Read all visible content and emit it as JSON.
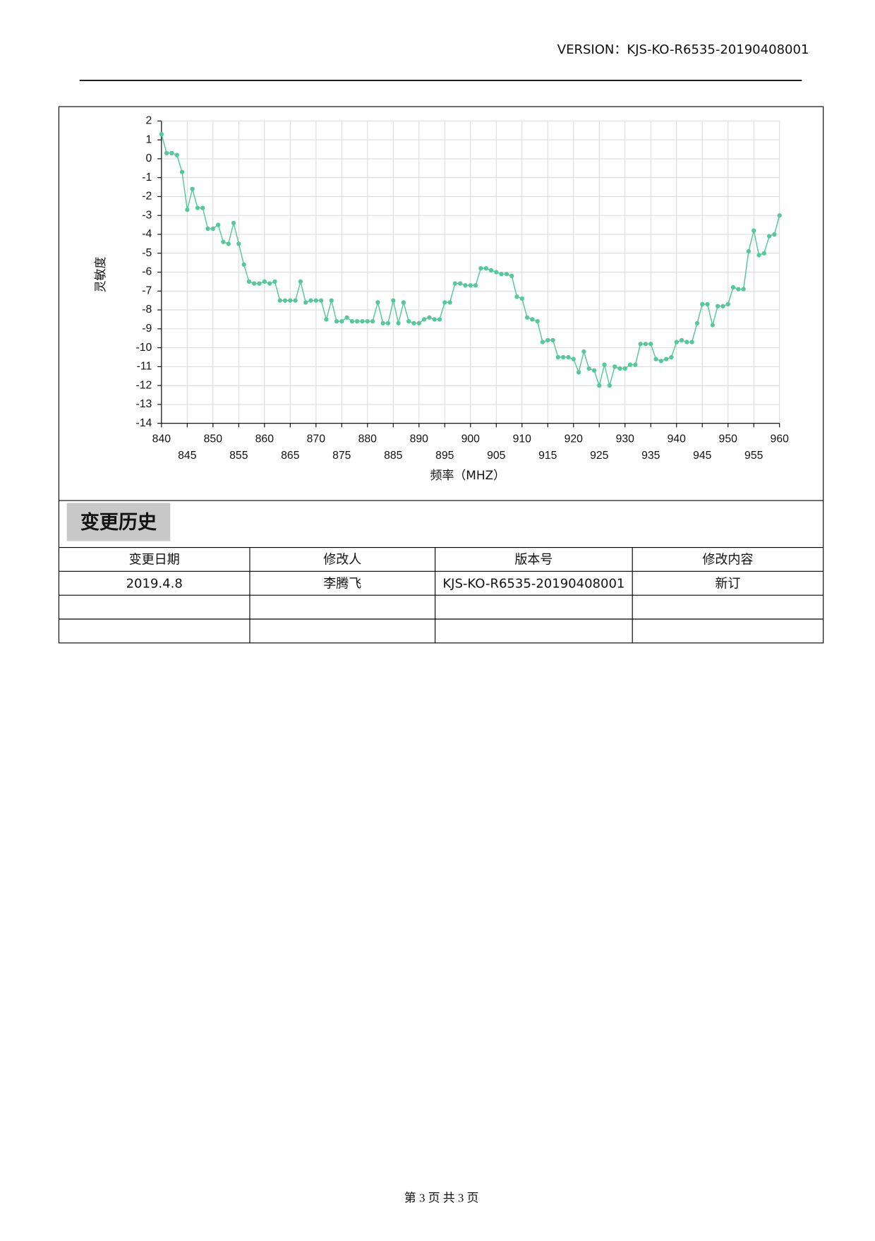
{
  "header": {
    "version": "VERSION：KJS-KO-R6535-20190408001"
  },
  "chart_data": {
    "type": "line",
    "x_label": "频率（MHZ）",
    "y_label": "灵敏度",
    "x": [
      840,
      841,
      842,
      843,
      844,
      845,
      846,
      847,
      848,
      849,
      850,
      851,
      852,
      853,
      854,
      855,
      856,
      857,
      858,
      859,
      860,
      861,
      862,
      863,
      864,
      865,
      866,
      867,
      868,
      869,
      870,
      871,
      872,
      873,
      874,
      875,
      876,
      877,
      878,
      879,
      880,
      881,
      882,
      883,
      884,
      885,
      886,
      887,
      888,
      889,
      890,
      891,
      892,
      893,
      894,
      895,
      896,
      897,
      898,
      899,
      900,
      901,
      902,
      903,
      904,
      905,
      906,
      907,
      908,
      909,
      910,
      911,
      912,
      913,
      914,
      915,
      916,
      917,
      918,
      919,
      920,
      921,
      922,
      923,
      924,
      925,
      926,
      927,
      928,
      929,
      930,
      931,
      932,
      933,
      934,
      935,
      936,
      937,
      938,
      939,
      940,
      941,
      942,
      943,
      944,
      945,
      946,
      947,
      948,
      949,
      950,
      951,
      952,
      953,
      954,
      955,
      956,
      957,
      958,
      959,
      960
    ],
    "values": [
      1.3,
      0.3,
      0.3,
      0.2,
      -0.7,
      -2.7,
      -1.6,
      -2.6,
      -2.6,
      -3.7,
      -3.7,
      -3.5,
      -4.4,
      -4.5,
      -3.4,
      -4.5,
      -5.6,
      -6.5,
      -6.6,
      -6.6,
      -6.5,
      -6.6,
      -6.5,
      -7.5,
      -7.5,
      -7.5,
      -7.5,
      -6.5,
      -7.6,
      -7.5,
      -7.5,
      -7.5,
      -8.5,
      -7.5,
      -8.6,
      -8.6,
      -8.4,
      -8.6,
      -8.6,
      -8.6,
      -8.6,
      -8.6,
      -7.6,
      -8.7,
      -8.7,
      -7.5,
      -8.7,
      -7.6,
      -8.6,
      -8.7,
      -8.7,
      -8.5,
      -8.4,
      -8.5,
      -8.5,
      -7.6,
      -7.6,
      -6.6,
      -6.6,
      -6.7,
      -6.7,
      -6.7,
      -5.8,
      -5.8,
      -5.9,
      -6.0,
      -6.1,
      -6.1,
      -6.2,
      -7.3,
      -7.4,
      -8.4,
      -8.5,
      -8.6,
      -9.7,
      -9.6,
      -9.6,
      -10.5,
      -10.5,
      -10.5,
      -10.6,
      -11.3,
      -10.2,
      -11.1,
      -11.2,
      -12.0,
      -10.9,
      -12.0,
      -11.0,
      -11.1,
      -11.1,
      -10.9,
      -10.9,
      -9.8,
      -9.8,
      -9.8,
      -10.6,
      -10.7,
      -10.6,
      -10.5,
      -9.7,
      -9.6,
      -9.7,
      -9.7,
      -8.7,
      -7.7,
      -7.7,
      -8.8,
      -7.8,
      -7.8,
      -7.7,
      -6.8,
      -6.9,
      -6.9,
      -4.9,
      -3.8,
      -5.1,
      -5.0,
      -4.1,
      -4.0,
      -3.0
    ],
    "color": "#55c999",
    "xlim": [
      840,
      960
    ],
    "ylim": [
      -14,
      2
    ],
    "xticks": [
      840,
      845,
      850,
      855,
      860,
      865,
      870,
      875,
      880,
      885,
      890,
      895,
      900,
      905,
      910,
      915,
      920,
      925,
      930,
      935,
      940,
      945,
      950,
      955,
      960
    ],
    "yticks": [
      2,
      1,
      0,
      -1,
      -2,
      -3,
      -4,
      -5,
      -6,
      -7,
      -8,
      -9,
      -10,
      -11,
      -12,
      -13,
      -14
    ],
    "grid": true
  },
  "change_history": {
    "title": "变更历史",
    "columns": [
      "变更日期",
      "修改人",
      "版本号",
      "修改内容"
    ],
    "rows": [
      [
        "2019.4.8",
        "李腾飞",
        "KJS-KO-R6535-20190408001",
        "新订"
      ]
    ]
  },
  "footer": "第 3 页 共 3 页"
}
